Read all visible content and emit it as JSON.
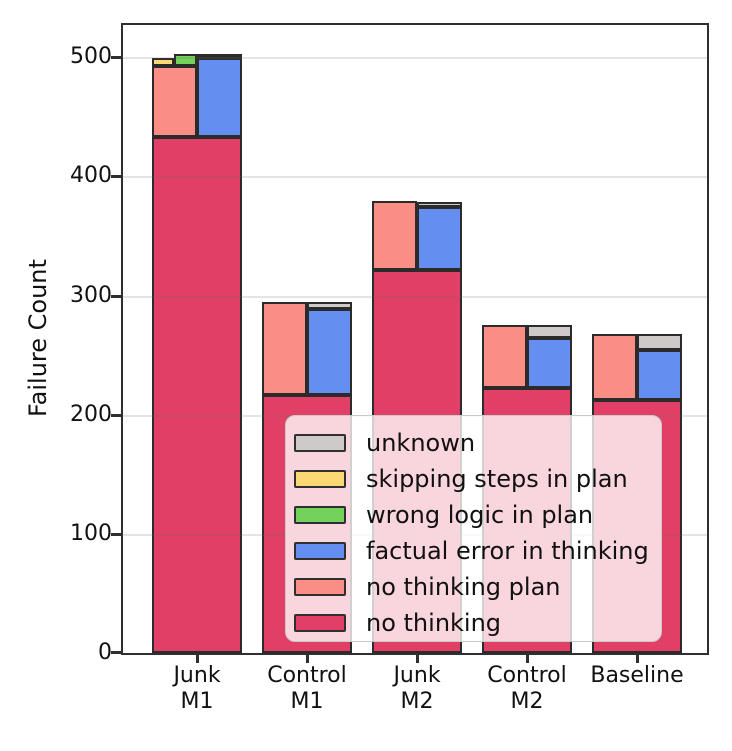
{
  "axes": {
    "ylabel": "Failure Count",
    "yticks": [
      "0",
      "100",
      "200",
      "300",
      "400",
      "500"
    ],
    "xticklabels": [
      {
        "line1": "Junk",
        "line2": "M1"
      },
      {
        "line1": "Control",
        "line2": "M1"
      },
      {
        "line1": "Junk",
        "line2": "M2"
      },
      {
        "line1": "Control",
        "line2": "M2"
      },
      {
        "line1": "Baseline",
        "line2": ""
      }
    ]
  },
  "legend": {
    "items": [
      {
        "label": "unknown",
        "key": "unknown"
      },
      {
        "label": "skipping steps in plan",
        "key": "skipping_steps_in_plan"
      },
      {
        "label": "wrong logic in plan",
        "key": "wrong_logic_in_plan"
      },
      {
        "label": "factual error in thinking",
        "key": "factual_error_in_thinking"
      },
      {
        "label": "no thinking plan",
        "key": "no_thinking_plan"
      },
      {
        "label": "no thinking",
        "key": "no_thinking"
      }
    ]
  },
  "chart_data": {
    "type": "bar",
    "variant": "hierarchical-stacked (full-width base, split half-width upper stacks)",
    "title": "",
    "xlabel": "",
    "ylabel": "Failure Count",
    "ylim": [
      0,
      527
    ],
    "yticks": [
      0,
      100,
      200,
      300,
      400,
      500
    ],
    "grid": "horizontal",
    "legend_position": "inside axes, lower right",
    "categories": [
      "Junk M1",
      "Control M1",
      "Junk M2",
      "Control M2",
      "Baseline"
    ],
    "colors": {
      "no_thinking": "#E23F66",
      "no_thinking_plan": "#FA8D84",
      "skipping_steps_in_plan": "#FBD873",
      "wrong_logic_in_plan": "#74D15B",
      "factual_error_in_thinking": "#648FF0",
      "unknown": "#CFCACA"
    },
    "series": [
      {
        "name": "no thinking",
        "key": "no_thinking",
        "values": [
          433,
          216,
          321,
          222,
          212
        ]
      },
      {
        "name": "no thinking plan",
        "key": "no_thinking_plan",
        "values": [
          59,
          78,
          58,
          53,
          55
        ]
      },
      {
        "name": "skipping steps in plan",
        "key": "skipping_steps_in_plan",
        "values": [
          7,
          0,
          0,
          0,
          0
        ]
      },
      {
        "name": "wrong logic in plan",
        "key": "wrong_logic_in_plan",
        "values": [
          10,
          0,
          0,
          0,
          0
        ]
      },
      {
        "name": "factual error in thinking",
        "key": "factual_error_in_thinking",
        "values": [
          66,
          72,
          53,
          42,
          42
        ]
      },
      {
        "name": "unknown",
        "key": "unknown",
        "values": [
          3,
          6,
          4,
          11,
          13
        ]
      }
    ],
    "bars": [
      {
        "category": "Junk M1",
        "segments": [
          {
            "key": "no_thinking",
            "from": 0,
            "to": 433,
            "slot": "full"
          },
          {
            "key": "no_thinking_plan",
            "from": 433,
            "to": 492,
            "slot": "left"
          },
          {
            "key": "skipping_steps_in_plan",
            "from": 492,
            "to": 499,
            "slot": "left-left"
          },
          {
            "key": "wrong_logic_in_plan",
            "from": 492,
            "to": 502,
            "slot": "left-right"
          },
          {
            "key": "factual_error_in_thinking",
            "from": 433,
            "to": 499,
            "slot": "right"
          },
          {
            "key": "unknown",
            "from": 499,
            "to": 502,
            "slot": "right"
          }
        ]
      },
      {
        "category": "Control M1",
        "segments": [
          {
            "key": "no_thinking",
            "from": 0,
            "to": 216,
            "slot": "full"
          },
          {
            "key": "no_thinking_plan",
            "from": 216,
            "to": 294,
            "slot": "left"
          },
          {
            "key": "factual_error_in_thinking",
            "from": 216,
            "to": 288,
            "slot": "right"
          },
          {
            "key": "unknown",
            "from": 288,
            "to": 294,
            "slot": "right"
          }
        ]
      },
      {
        "category": "Junk M2",
        "segments": [
          {
            "key": "no_thinking",
            "from": 0,
            "to": 321,
            "slot": "full"
          },
          {
            "key": "no_thinking_plan",
            "from": 321,
            "to": 379,
            "slot": "left"
          },
          {
            "key": "factual_error_in_thinking",
            "from": 321,
            "to": 374,
            "slot": "right"
          },
          {
            "key": "unknown",
            "from": 374,
            "to": 378,
            "slot": "right"
          }
        ]
      },
      {
        "category": "Control M2",
        "segments": [
          {
            "key": "no_thinking",
            "from": 0,
            "to": 222,
            "slot": "full"
          },
          {
            "key": "no_thinking_plan",
            "from": 222,
            "to": 275,
            "slot": "left"
          },
          {
            "key": "factual_error_in_thinking",
            "from": 222,
            "to": 264,
            "slot": "right"
          },
          {
            "key": "unknown",
            "from": 264,
            "to": 275,
            "slot": "right"
          }
        ]
      },
      {
        "category": "Baseline",
        "segments": [
          {
            "key": "no_thinking",
            "from": 0,
            "to": 212,
            "slot": "full"
          },
          {
            "key": "no_thinking_plan",
            "from": 212,
            "to": 267,
            "slot": "left"
          },
          {
            "key": "factual_error_in_thinking",
            "from": 212,
            "to": 254,
            "slot": "right"
          },
          {
            "key": "unknown",
            "from": 254,
            "to": 267,
            "slot": "right"
          }
        ]
      }
    ]
  }
}
